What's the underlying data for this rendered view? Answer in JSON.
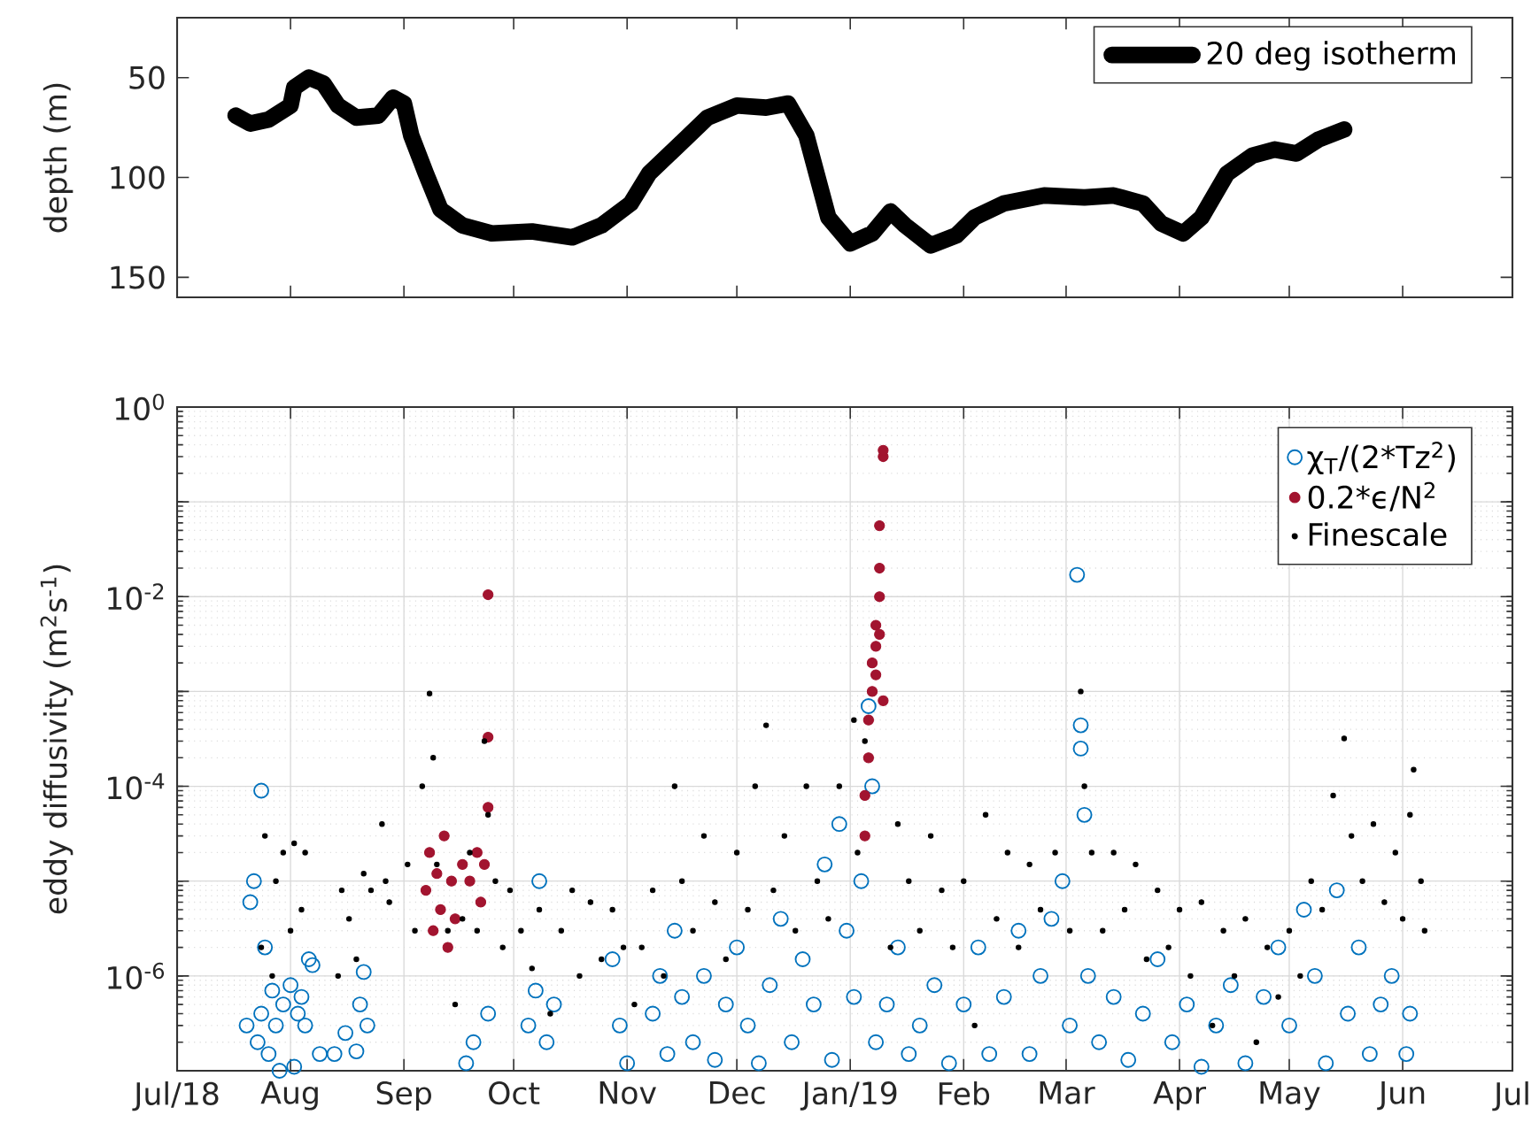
{
  "chart_data": [
    {
      "type": "line",
      "ylabel": "depth (m)",
      "xlim": [
        "2018-07-01",
        "2019-07-01"
      ],
      "xticks": [
        {
          "value": "2018-08-01",
          "label": null
        },
        {
          "value": "2018-09-01",
          "label": null
        },
        {
          "value": "2018-10-01",
          "label": null
        },
        {
          "value": "2018-11-01",
          "label": null
        },
        {
          "value": "2018-12-01",
          "label": null
        },
        {
          "value": "2019-01-01",
          "label": null
        },
        {
          "value": "2019-02-01",
          "label": null
        },
        {
          "value": "2019-03-01",
          "label": null
        },
        {
          "value": "2019-04-01",
          "label": null
        },
        {
          "value": "2019-05-01",
          "label": null
        },
        {
          "value": "2019-06-01",
          "label": null
        }
      ],
      "ylim": [
        160,
        20
      ],
      "yticks": [
        50,
        100,
        150
      ],
      "tick_labels": "y",
      "legend": "top right",
      "grid": false,
      "series": [
        {
          "name": "20 deg isotherm",
          "color": "#000000",
          "x": [
            "2018-07-17",
            "2018-07-21",
            "2018-07-26",
            "2018-08-01",
            "2018-08-02",
            "2018-08-06",
            "2018-08-10",
            "2018-08-14",
            "2018-08-19",
            "2018-08-25",
            "2018-08-29",
            "2018-09-01",
            "2018-09-03",
            "2018-09-07",
            "2018-09-11",
            "2018-09-17",
            "2018-09-25",
            "2018-10-06",
            "2018-10-17",
            "2018-10-25",
            "2018-11-02",
            "2018-11-07",
            "2018-11-15",
            "2018-11-23",
            "2018-12-01",
            "2018-12-09",
            "2018-12-15",
            "2018-12-20",
            "2018-12-26",
            "2019-01-01",
            "2019-01-07",
            "2019-01-12",
            "2019-01-16",
            "2019-01-23",
            "2019-01-30",
            "2019-02-04",
            "2019-02-12",
            "2019-02-23",
            "2019-03-06",
            "2019-03-14",
            "2019-03-22",
            "2019-03-27",
            "2019-04-02",
            "2019-04-07",
            "2019-04-14",
            "2019-04-21",
            "2019-04-27",
            "2019-05-03",
            "2019-05-09",
            "2019-05-16"
          ],
          "values": [
            69,
            73,
            71,
            64,
            55,
            50,
            53,
            64,
            70,
            69,
            60,
            63,
            79,
            98,
            116,
            124,
            128,
            127,
            130,
            124,
            113,
            98,
            84,
            70,
            64,
            65,
            63,
            79,
            120,
            133,
            128,
            117,
            124,
            134,
            129,
            120,
            113,
            109,
            110,
            109,
            113,
            123,
            128,
            120,
            98,
            89,
            86,
            88,
            81,
            76
          ]
        }
      ]
    },
    {
      "type": "scatter",
      "ylabel": "eddy diffusivity (m$^{2}$s$^{-1}$)",
      "xlim": [
        "2018-07-01",
        "2019-07-01"
      ],
      "xticks": [
        {
          "value": "2018-07-01",
          "label": "Jul/18"
        },
        {
          "value": "2018-08-01",
          "label": "Aug"
        },
        {
          "value": "2018-09-01",
          "label": "Sep"
        },
        {
          "value": "2018-10-01",
          "label": "Oct"
        },
        {
          "value": "2018-11-01",
          "label": "Nov"
        },
        {
          "value": "2018-12-01",
          "label": "Dec"
        },
        {
          "value": "2019-01-01",
          "label": "Jan/19"
        },
        {
          "value": "2019-02-01",
          "label": "Feb"
        },
        {
          "value": "2019-03-01",
          "label": "Mar"
        },
        {
          "value": "2019-04-01",
          "label": "Apr"
        },
        {
          "value": "2019-05-01",
          "label": "May"
        },
        {
          "value": "2019-06-01",
          "label": "Jun"
        },
        {
          "value": "2019-07-01",
          "label": "Jul"
        }
      ],
      "ylim": [
        1e-07,
        1
      ],
      "yticks": [
        {
          "value": 1e-07,
          "label": null
        },
        {
          "value": 1e-06,
          "label": "10$^{-6}$"
        },
        {
          "value": 1e-05,
          "label": null
        },
        {
          "value": 0.0001,
          "label": "10$^{-4}$"
        },
        {
          "value": 0.001,
          "label": null
        },
        {
          "value": 0.01,
          "label": "10$^{-2}$"
        },
        {
          "value": 0.1,
          "label": null
        },
        {
          "value": 1,
          "label": "10$^{0}$"
        }
      ],
      "log": "y",
      "grid": true,
      "legend": "top right",
      "series": [
        {
          "name": "χ$_{T}$/(2*Tz$^{2}$)",
          "color": "#0072bd",
          "marker": "circle",
          "x": [
            "2018-07-20",
            "2018-07-21",
            "2018-07-22",
            "2018-07-23",
            "2018-07-24",
            "2018-07-24",
            "2018-07-25",
            "2018-07-26",
            "2018-07-27",
            "2018-07-28",
            "2018-07-29",
            "2018-07-30",
            "2018-08-01",
            "2018-08-02",
            "2018-08-03",
            "2018-08-04",
            "2018-08-05",
            "2018-08-06",
            "2018-08-07",
            "2018-08-09",
            "2018-08-13",
            "2018-08-16",
            "2018-08-19",
            "2018-08-20",
            "2018-08-21",
            "2018-08-22",
            "2018-09-18",
            "2018-09-20",
            "2018-09-24",
            "2018-10-05",
            "2018-10-07",
            "2018-10-08",
            "2018-10-10",
            "2018-10-12",
            "2018-10-28",
            "2018-10-30",
            "2018-11-01",
            "2018-11-08",
            "2018-11-10",
            "2018-11-12",
            "2018-11-14",
            "2018-11-16",
            "2018-11-19",
            "2018-11-22",
            "2018-11-25",
            "2018-11-28",
            "2018-12-01",
            "2018-12-04",
            "2018-12-07",
            "2018-12-10",
            "2018-12-13",
            "2018-12-16",
            "2018-12-19",
            "2018-12-22",
            "2018-12-25",
            "2018-12-27",
            "2018-12-29",
            "2018-12-31",
            "2019-01-02",
            "2019-01-04",
            "2019-01-06",
            "2019-01-07",
            "2019-01-08",
            "2019-01-11",
            "2019-01-14",
            "2019-01-17",
            "2019-01-20",
            "2019-01-24",
            "2019-01-28",
            "2019-02-01",
            "2019-02-05",
            "2019-02-08",
            "2019-02-12",
            "2019-02-16",
            "2019-02-19",
            "2019-02-22",
            "2019-02-25",
            "2019-02-28",
            "2019-03-02",
            "2019-03-04",
            "2019-03-05",
            "2019-03-05",
            "2019-03-06",
            "2019-03-07",
            "2019-03-10",
            "2019-03-14",
            "2019-03-18",
            "2019-03-22",
            "2019-03-26",
            "2019-03-30",
            "2019-04-03",
            "2019-04-07",
            "2019-04-11",
            "2019-04-15",
            "2019-04-19",
            "2019-04-24",
            "2019-04-28",
            "2019-05-01",
            "2019-05-05",
            "2019-05-08",
            "2019-05-11",
            "2019-05-14",
            "2019-05-17",
            "2019-05-20",
            "2019-05-23",
            "2019-05-26",
            "2019-05-29",
            "2019-06-02",
            "2019-06-03"
          ],
          "values": [
            3e-07,
            6e-06,
            1e-05,
            2e-07,
            9e-05,
            4e-07,
            2e-06,
            1.5e-07,
            7e-07,
            3e-07,
            1e-07,
            5e-07,
            8e-07,
            1.1e-07,
            4e-07,
            6e-07,
            3e-07,
            1.5e-06,
            1.3e-06,
            1.5e-07,
            1.5e-07,
            2.5e-07,
            1.6e-07,
            5e-07,
            1.1e-06,
            3e-07,
            1.2e-07,
            2e-07,
            4e-07,
            3e-07,
            7e-07,
            1e-05,
            2e-07,
            5e-07,
            1.5e-06,
            3e-07,
            1.2e-07,
            4e-07,
            1e-06,
            1.5e-07,
            3e-06,
            6e-07,
            2e-07,
            1e-06,
            1.3e-07,
            5e-07,
            2e-06,
            3e-07,
            1.2e-07,
            8e-07,
            4e-06,
            2e-07,
            1.5e-06,
            5e-07,
            1.5e-05,
            1.3e-07,
            4e-05,
            3e-06,
            6e-07,
            1e-05,
            0.0007,
            0.0001,
            2e-07,
            5e-07,
            2e-06,
            1.5e-07,
            3e-07,
            8e-07,
            1.2e-07,
            5e-07,
            2e-06,
            1.5e-07,
            6e-07,
            3e-06,
            1.5e-07,
            1e-06,
            4e-06,
            1e-05,
            3e-07,
            0.017,
            0.00044,
            0.00025,
            5e-05,
            1e-06,
            2e-07,
            6e-07,
            1.3e-07,
            4e-07,
            1.5e-06,
            2e-07,
            5e-07,
            1.1e-07,
            3e-07,
            8e-07,
            1.2e-07,
            6e-07,
            2e-06,
            3e-07,
            5e-06,
            1e-06,
            1.2e-07,
            8e-06,
            4e-07,
            2e-06,
            1.5e-07,
            5e-07,
            1e-06,
            1.5e-07,
            4e-07
          ]
        },
        {
          "name": "0.2*ϵ/N$^{2}$",
          "color": "#a2142f",
          "marker": "dot",
          "x": [
            "2018-09-07",
            "2018-09-08",
            "2018-09-09",
            "2018-09-10",
            "2018-09-11",
            "2018-09-12",
            "2018-09-13",
            "2018-09-14",
            "2018-09-15",
            "2018-09-17",
            "2018-09-19",
            "2018-09-21",
            "2018-09-22",
            "2018-09-23",
            "2018-09-24",
            "2018-09-24",
            "2018-09-24",
            "2019-01-05",
            "2019-01-05",
            "2019-01-06",
            "2019-01-06",
            "2019-01-07",
            "2019-01-07",
            "2019-01-08",
            "2019-01-08",
            "2019-01-08",
            "2019-01-09",
            "2019-01-09",
            "2019-01-09",
            "2019-01-09",
            "2019-01-10",
            "2019-01-10",
            "2019-01-10"
          ],
          "values": [
            8e-06,
            2e-05,
            3e-06,
            1.2e-05,
            5e-06,
            3e-05,
            2e-06,
            1e-05,
            4e-06,
            1.5e-05,
            1e-05,
            2e-05,
            6e-06,
            1.5e-05,
            0.0105,
            0.00033,
            6e-05,
            8e-05,
            3e-05,
            0.0002,
            0.0005,
            0.001,
            0.002,
            0.003,
            0.005,
            0.0015,
            0.01,
            0.02,
            0.056,
            0.004,
            0.3,
            0.35,
            0.0008
          ]
        },
        {
          "name": "Finescale",
          "color": "#000000",
          "marker": "point",
          "x": [
            "2018-07-24",
            "2018-07-25",
            "2018-07-27",
            "2018-07-28",
            "2018-07-30",
            "2018-08-01",
            "2018-08-02",
            "2018-08-04",
            "2018-08-05",
            "2018-08-14",
            "2018-08-15",
            "2018-08-17",
            "2018-08-19",
            "2018-08-21",
            "2018-08-23",
            "2018-08-26",
            "2018-08-27",
            "2018-08-28",
            "2018-09-02",
            "2018-09-04",
            "2018-09-06",
            "2018-09-08",
            "2018-09-09",
            "2018-09-10",
            "2018-09-13",
            "2018-09-15",
            "2018-09-17",
            "2018-09-19",
            "2018-09-21",
            "2018-09-23",
            "2018-09-24",
            "2018-09-26",
            "2018-09-28",
            "2018-09-30",
            "2018-10-03",
            "2018-10-06",
            "2018-10-08",
            "2018-10-11",
            "2018-10-14",
            "2018-10-17",
            "2018-10-19",
            "2018-10-22",
            "2018-10-25",
            "2018-10-28",
            "2018-10-31",
            "2018-11-03",
            "2018-11-05",
            "2018-11-08",
            "2018-11-11",
            "2018-11-14",
            "2018-11-16",
            "2018-11-19",
            "2018-11-22",
            "2018-11-25",
            "2018-11-28",
            "2018-12-01",
            "2018-12-04",
            "2018-12-06",
            "2018-12-09",
            "2018-12-11",
            "2018-12-14",
            "2018-12-17",
            "2018-12-20",
            "2018-12-23",
            "2018-12-26",
            "2018-12-29",
            "2019-01-02",
            "2019-01-03",
            "2019-01-05",
            "2019-01-12",
            "2019-01-14",
            "2019-01-17",
            "2019-01-20",
            "2019-01-23",
            "2019-01-26",
            "2019-01-29",
            "2019-02-01",
            "2019-02-04",
            "2019-02-07",
            "2019-02-10",
            "2019-02-13",
            "2019-02-16",
            "2019-02-19",
            "2019-02-22",
            "2019-02-26",
            "2019-03-02",
            "2019-03-05",
            "2019-03-06",
            "2019-03-08",
            "2019-03-11",
            "2019-03-14",
            "2019-03-17",
            "2019-03-20",
            "2019-03-23",
            "2019-03-26",
            "2019-03-29",
            "2019-04-01",
            "2019-04-04",
            "2019-04-07",
            "2019-04-10",
            "2019-04-13",
            "2019-04-16",
            "2019-04-19",
            "2019-04-22",
            "2019-04-25",
            "2019-04-28",
            "2019-05-01",
            "2019-05-04",
            "2019-05-07",
            "2019-05-10",
            "2019-05-13",
            "2019-05-16",
            "2019-05-18",
            "2019-05-21",
            "2019-05-24",
            "2019-05-27",
            "2019-05-30",
            "2019-06-01",
            "2019-06-03",
            "2019-06-04",
            "2019-06-06",
            "2019-06-07"
          ],
          "values": [
            2e-06,
            3e-05,
            1e-06,
            1e-05,
            2e-05,
            3e-06,
            2.5e-05,
            5e-06,
            2e-05,
            1e-06,
            8e-06,
            4e-06,
            1.5e-06,
            1.2e-05,
            8e-06,
            4e-05,
            1e-05,
            6e-06,
            1.5e-05,
            3e-06,
            0.0001,
            0.00095,
            0.0002,
            1.5e-05,
            3e-06,
            5e-07,
            4e-06,
            2e-05,
            3e-06,
            0.0003,
            5e-05,
            1e-05,
            2e-06,
            8e-06,
            3e-06,
            1.2e-06,
            5e-06,
            4e-07,
            3e-06,
            8e-06,
            1e-06,
            6e-06,
            1.5e-06,
            5e-06,
            2e-06,
            5e-07,
            2e-06,
            8e-06,
            1e-06,
            0.0001,
            1e-05,
            3e-06,
            3e-05,
            6e-06,
            1.5e-06,
            2e-05,
            5e-06,
            0.0001,
            0.00044,
            8e-06,
            3e-05,
            3e-06,
            0.0001,
            1e-05,
            4e-06,
            0.0001,
            0.0005,
            2e-05,
            0.0003,
            2e-06,
            4e-05,
            1e-05,
            3e-06,
            3e-05,
            8e-06,
            2e-06,
            1e-05,
            3e-07,
            5e-05,
            4e-06,
            2e-05,
            2e-06,
            1.5e-05,
            5e-06,
            2e-05,
            3e-06,
            0.001,
            0.0001,
            2e-05,
            3e-06,
            2e-05,
            5e-06,
            1.5e-05,
            1.5e-06,
            8e-06,
            2e-06,
            5e-06,
            1e-06,
            6e-06,
            3e-07,
            3e-06,
            1e-06,
            4e-06,
            2e-07,
            2e-06,
            6e-07,
            3e-06,
            1e-06,
            1e-05,
            5e-06,
            8e-05,
            0.00032,
            3e-05,
            1e-05,
            4e-05,
            6e-06,
            2e-05,
            4e-06,
            5e-05,
            0.00015,
            1e-05,
            3e-06
          ]
        }
      ]
    }
  ]
}
